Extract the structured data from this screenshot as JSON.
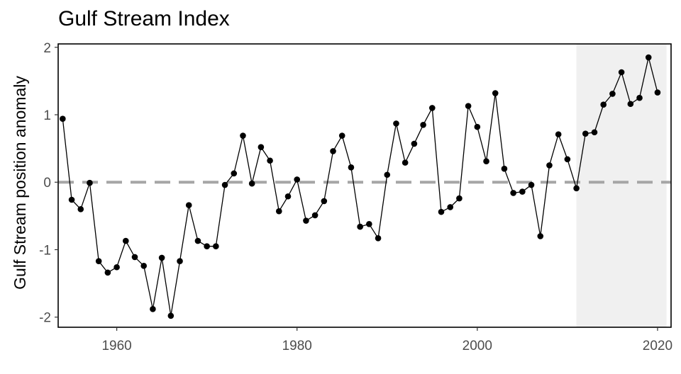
{
  "chart_data": {
    "type": "line",
    "title": "Gulf Stream Index",
    "xlabel": "",
    "ylabel": "Gulf Stream position anomaly",
    "xlim": [
      1953.5,
      2021.5
    ],
    "ylim": [
      -2.15,
      2.05
    ],
    "xticks": [
      1960,
      1980,
      2000,
      2020
    ],
    "yticks": [
      -2,
      -1,
      0,
      1,
      2
    ],
    "reference_line": {
      "y": 0,
      "style": "dashed",
      "color": "#a6a6a6"
    },
    "shaded_region": {
      "x_from": 2011,
      "x_to": 2021,
      "color": "#f0f0f0"
    },
    "series": [
      {
        "color": "#000000",
        "x": [
          1954,
          1955,
          1956,
          1957,
          1958,
          1959,
          1960,
          1961,
          1962,
          1963,
          1964,
          1965,
          1966,
          1967,
          1968,
          1969,
          1970,
          1971,
          1972,
          1973,
          1974,
          1975,
          1976,
          1977,
          1978,
          1979,
          1980,
          1981,
          1982,
          1983,
          1984,
          1985,
          1986,
          1987,
          1988,
          1989,
          1990,
          1991,
          1992,
          1993,
          1994,
          1995,
          1996,
          1997,
          1998,
          1999,
          2000,
          2001,
          2002,
          2003,
          2004,
          2005,
          2006,
          2007,
          2008,
          2009,
          2010,
          2011,
          2012,
          2013,
          2014,
          2015,
          2016,
          2017,
          2018,
          2019,
          2020
        ],
        "values": [
          0.94,
          -0.26,
          -0.4,
          -0.01,
          -1.17,
          -1.34,
          -1.26,
          -0.87,
          -1.11,
          -1.24,
          -1.88,
          -1.12,
          -1.98,
          -1.17,
          -0.34,
          -0.87,
          -0.95,
          -0.95,
          -0.04,
          0.13,
          0.69,
          -0.02,
          0.52,
          0.32,
          -0.43,
          -0.21,
          0.04,
          -0.57,
          -0.49,
          -0.28,
          0.46,
          0.69,
          0.22,
          -0.66,
          -0.62,
          -0.83,
          0.11,
          0.87,
          0.29,
          0.57,
          0.85,
          1.1,
          -0.44,
          -0.37,
          -0.24,
          1.13,
          0.82,
          0.31,
          1.32,
          0.2,
          -0.16,
          -0.14,
          -0.04,
          -0.8,
          0.25,
          0.71,
          0.34,
          -0.09,
          0.72,
          0.74,
          1.15,
          1.31,
          1.63,
          1.16,
          1.25,
          1.85,
          1.33
        ]
      }
    ]
  }
}
